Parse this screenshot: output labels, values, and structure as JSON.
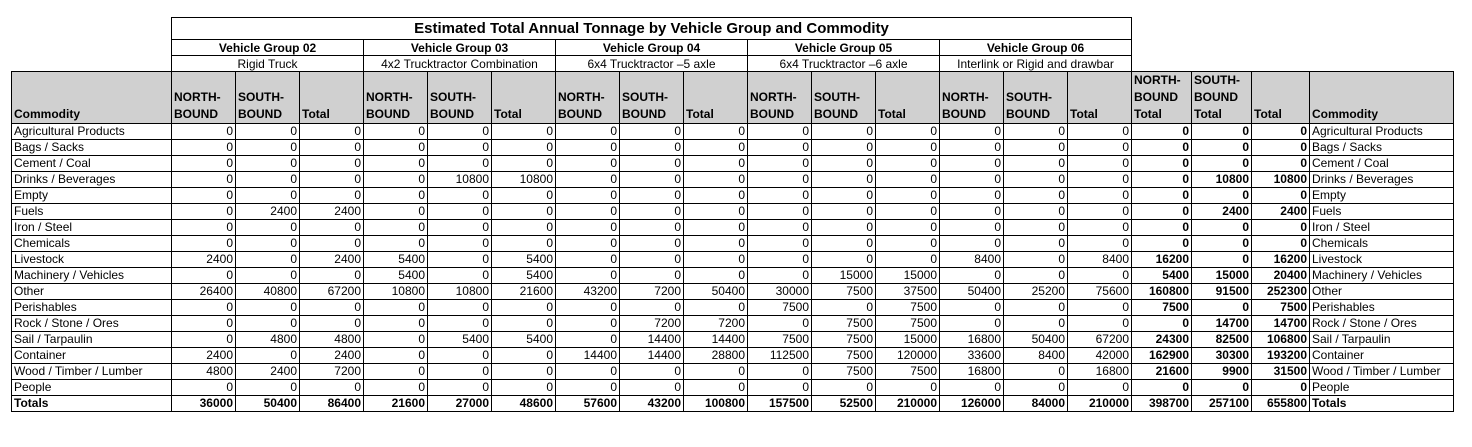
{
  "title": "Estimated Total Annual Tonnage by Vehicle Group and Commodity",
  "groups": [
    {
      "name": "Vehicle Group 02",
      "desc": "Rigid Truck"
    },
    {
      "name": "Vehicle Group 03",
      "desc": "4x2 Trucktractor Combination"
    },
    {
      "name": "Vehicle Group 04",
      "desc": "6x4 Trucktractor –5 axle"
    },
    {
      "name": "Vehicle Group 05",
      "desc": "6x4 Trucktractor –6 axle"
    },
    {
      "name": "Vehicle Group 06",
      "desc": "Interlink or Rigid and drawbar"
    }
  ],
  "headers": {
    "commodity": "Commodity",
    "north": "NORTH-BOUND",
    "south": "SOUTH-BOUND",
    "total": "Total",
    "north_total": "NORTH-BOUND Total",
    "south_total": "SOUTH-BOUND Total",
    "grand_total": "Total",
    "commodity_right": "Commodity"
  },
  "rows": [
    {
      "name": "Agricultural Products",
      "values": [
        "0",
        "0",
        "0",
        "0",
        "0",
        "0",
        "0",
        "0",
        "0",
        "0",
        "0",
        "0",
        "0",
        "0",
        "0",
        "0",
        "0",
        "0"
      ]
    },
    {
      "name": "Bags / Sacks",
      "values": [
        "0",
        "0",
        "0",
        "0",
        "0",
        "0",
        "0",
        "0",
        "0",
        "0",
        "0",
        "0",
        "0",
        "0",
        "0",
        "0",
        "0",
        "0"
      ]
    },
    {
      "name": "Cement / Coal",
      "values": [
        "0",
        "0",
        "0",
        "0",
        "0",
        "0",
        "0",
        "0",
        "0",
        "0",
        "0",
        "0",
        "0",
        "0",
        "0",
        "0",
        "0",
        "0"
      ]
    },
    {
      "name": "Drinks / Beverages",
      "values": [
        "0",
        "0",
        "0",
        "0",
        "10800",
        "10800",
        "0",
        "0",
        "0",
        "0",
        "0",
        "0",
        "0",
        "0",
        "0",
        "0",
        "10800",
        "10800"
      ]
    },
    {
      "name": "Empty",
      "values": [
        "0",
        "0",
        "0",
        "0",
        "0",
        "0",
        "0",
        "0",
        "0",
        "0",
        "0",
        "0",
        "0",
        "0",
        "0",
        "0",
        "0",
        "0"
      ]
    },
    {
      "name": "Fuels",
      "values": [
        "0",
        "2400",
        "2400",
        "0",
        "0",
        "0",
        "0",
        "0",
        "0",
        "0",
        "0",
        "0",
        "0",
        "0",
        "0",
        "0",
        "2400",
        "2400"
      ]
    },
    {
      "name": "Iron / Steel",
      "values": [
        "0",
        "0",
        "0",
        "0",
        "0",
        "0",
        "0",
        "0",
        "0",
        "0",
        "0",
        "0",
        "0",
        "0",
        "0",
        "0",
        "0",
        "0"
      ]
    },
    {
      "name": "Chemicals",
      "values": [
        "0",
        "0",
        "0",
        "0",
        "0",
        "0",
        "0",
        "0",
        "0",
        "0",
        "0",
        "0",
        "0",
        "0",
        "0",
        "0",
        "0",
        "0"
      ]
    },
    {
      "name": "Livestock",
      "values": [
        "2400",
        "0",
        "2400",
        "5400",
        "0",
        "5400",
        "0",
        "0",
        "0",
        "0",
        "0",
        "0",
        "8400",
        "0",
        "8400",
        "16200",
        "0",
        "16200"
      ]
    },
    {
      "name": "Machinery / Vehicles",
      "values": [
        "0",
        "0",
        "0",
        "5400",
        "0",
        "5400",
        "0",
        "0",
        "0",
        "0",
        "15000",
        "15000",
        "0",
        "0",
        "0",
        "5400",
        "15000",
        "20400"
      ]
    },
    {
      "name": "Other",
      "values": [
        "26400",
        "40800",
        "67200",
        "10800",
        "10800",
        "21600",
        "43200",
        "7200",
        "50400",
        "30000",
        "7500",
        "37500",
        "50400",
        "25200",
        "75600",
        "160800",
        "91500",
        "252300"
      ]
    },
    {
      "name": "Perishables",
      "values": [
        "0",
        "0",
        "0",
        "0",
        "0",
        "0",
        "0",
        "0",
        "0",
        "7500",
        "0",
        "7500",
        "0",
        "0",
        "0",
        "7500",
        "0",
        "7500"
      ]
    },
    {
      "name": "Rock / Stone / Ores",
      "values": [
        "0",
        "0",
        "0",
        "0",
        "0",
        "0",
        "0",
        "7200",
        "7200",
        "0",
        "7500",
        "7500",
        "0",
        "0",
        "0",
        "0",
        "14700",
        "14700"
      ]
    },
    {
      "name": "Sail / Tarpaulin",
      "values": [
        "0",
        "4800",
        "4800",
        "0",
        "5400",
        "5400",
        "0",
        "14400",
        "14400",
        "7500",
        "7500",
        "15000",
        "16800",
        "50400",
        "67200",
        "24300",
        "82500",
        "106800"
      ]
    },
    {
      "name": "Container",
      "values": [
        "2400",
        "0",
        "2400",
        "0",
        "0",
        "0",
        "14400",
        "14400",
        "28800",
        "112500",
        "7500",
        "120000",
        "33600",
        "8400",
        "42000",
        "162900",
        "30300",
        "193200"
      ]
    },
    {
      "name": "Wood / Timber / Lumber",
      "values": [
        "4800",
        "2400",
        "7200",
        "0",
        "0",
        "0",
        "0",
        "0",
        "0",
        "0",
        "7500",
        "7500",
        "16800",
        "0",
        "16800",
        "21600",
        "9900",
        "31500"
      ]
    },
    {
      "name": "People",
      "values": [
        "0",
        "0",
        "0",
        "0",
        "0",
        "0",
        "0",
        "0",
        "0",
        "0",
        "0",
        "0",
        "0",
        "0",
        "0",
        "0",
        "0",
        "0"
      ]
    },
    {
      "name": "Totals",
      "values": [
        "36000",
        "50400",
        "86400",
        "21600",
        "27000",
        "48600",
        "57600",
        "43200",
        "100800",
        "157500",
        "52500",
        "210000",
        "126000",
        "84000",
        "210000",
        "398700",
        "257100",
        "655800"
      ]
    }
  ]
}
